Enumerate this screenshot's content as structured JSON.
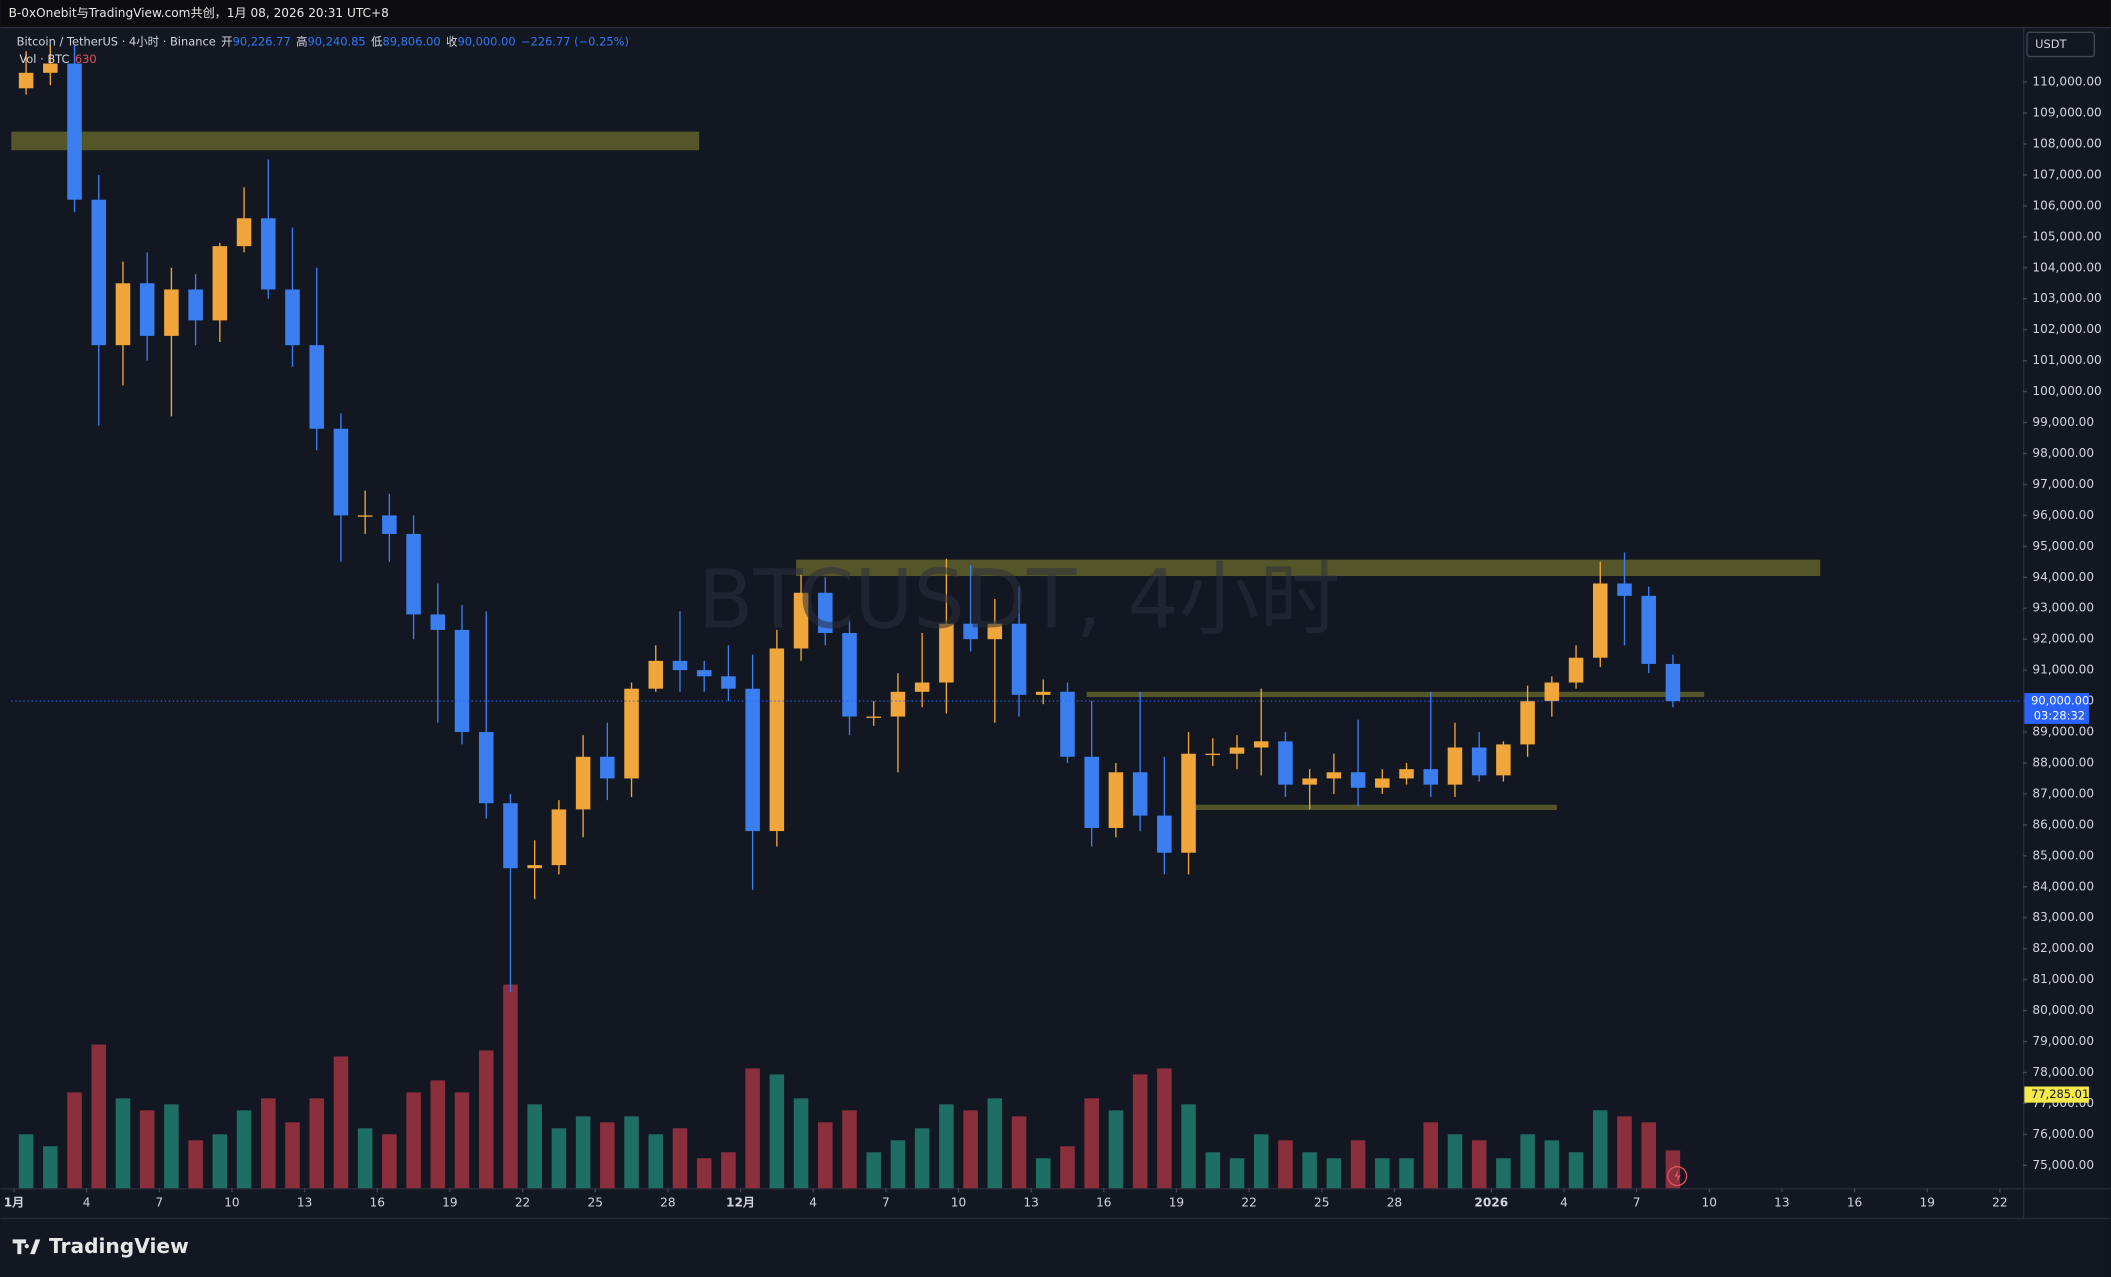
{
  "header": "B-0xOnebit与TradingView.com共创，1月 08, 2026 20:31 UTC+8",
  "brand": "TradingView",
  "chart_data": {
    "type": "candlestick",
    "legend": {
      "symbol": "Bitcoin / TetherUS · 4小时 · Binance",
      "open_label": "开",
      "open": "90,226.77",
      "high_label": "高",
      "high": "90,240.85",
      "low_label": "低",
      "low": "89,806.00",
      "close_label": "收",
      "close": "90,000.00",
      "change": "−226.77 (−0.25%)",
      "volume_label": "Vol · BTC"
    },
    "watermark": "BTCUSDT, 4小时",
    "currency": "USDT",
    "x": [
      "2025-11-01",
      "2025-11-02",
      "2025-11-03",
      "2025-11-04",
      "2025-11-05",
      "2025-11-06",
      "2025-11-07",
      "2025-11-08",
      "2025-11-09",
      "2025-11-10",
      "2025-11-11",
      "2025-11-12",
      "2025-11-13",
      "2025-11-14",
      "2025-11-15",
      "2025-11-16",
      "2025-11-17",
      "2025-11-18",
      "2025-11-19",
      "2025-11-20",
      "2025-11-21",
      "2025-11-22",
      "2025-11-23",
      "2025-11-24",
      "2025-11-25",
      "2025-11-26",
      "2025-11-27",
      "2025-11-28",
      "2025-11-29",
      "2025-11-30",
      "2025-12-01",
      "2025-12-02",
      "2025-12-03",
      "2025-12-04",
      "2025-12-05",
      "2025-12-06",
      "2025-12-07",
      "2025-12-08",
      "2025-12-09",
      "2025-12-10",
      "2025-12-11",
      "2025-12-12",
      "2025-12-13",
      "2025-12-14",
      "2025-12-15",
      "2025-12-16",
      "2025-12-17",
      "2025-12-18",
      "2025-12-19",
      "2025-12-20",
      "2025-12-21",
      "2025-12-22",
      "2025-12-23",
      "2025-12-24",
      "2025-12-25",
      "2025-12-26",
      "2025-12-27",
      "2025-12-28",
      "2025-12-29",
      "2025-12-30",
      "2025-12-31",
      "2026-01-01",
      "2026-01-02",
      "2026-01-03",
      "2026-01-04",
      "2026-01-05",
      "2026-01-06",
      "2026-01-07",
      "2026-01-08"
    ],
    "open": [
      109800,
      110300,
      110600,
      106200,
      101500,
      103500,
      101800,
      103300,
      102300,
      104700,
      105600,
      103300,
      101500,
      98800,
      96000,
      96000,
      95400,
      92800,
      92300,
      89000,
      86700,
      84600,
      84700,
      86500,
      88200,
      87500,
      90400,
      91300,
      91000,
      90800,
      90400,
      85800,
      91700,
      93500,
      92200,
      89500,
      89500,
      90300,
      90600,
      92500,
      92000,
      92500,
      90200,
      90300,
      88200,
      85900,
      87700,
      86300,
      85100,
      88300,
      88300,
      88500,
      88700,
      87300,
      87500,
      87700,
      87200,
      87500,
      87800,
      87300,
      88500,
      87600,
      88600,
      90000,
      90600,
      91400,
      93800,
      93400,
      91200
    ],
    "high": [
      111000,
      111200,
      111200,
      107000,
      104200,
      104500,
      104000,
      103800,
      104800,
      106600,
      107500,
      105300,
      104000,
      99300,
      96800,
      96700,
      96000,
      93800,
      93100,
      92900,
      87000,
      85500,
      86800,
      88900,
      89300,
      90600,
      91800,
      92900,
      91300,
      91800,
      91500,
      92300,
      94100,
      94000,
      92600,
      90000,
      90900,
      92200,
      94600,
      94400,
      93300,
      93700,
      90700,
      90600,
      90000,
      88000,
      90300,
      88200,
      89000,
      88800,
      88900,
      90400,
      89000,
      87800,
      88300,
      89400,
      87800,
      88000,
      90300,
      89300,
      89000,
      88700,
      90500,
      90800,
      91800,
      94500,
      94800,
      93700,
      91500
    ],
    "low": [
      109600,
      109900,
      105800,
      98900,
      100200,
      101000,
      99200,
      101500,
      101600,
      104500,
      103000,
      100800,
      98100,
      94500,
      95400,
      94500,
      92000,
      89300,
      88600,
      86200,
      80600,
      83600,
      84400,
      85600,
      86800,
      86900,
      90300,
      90300,
      90300,
      90000,
      83900,
      85300,
      91300,
      91800,
      88900,
      89200,
      87700,
      89800,
      89600,
      91600,
      89300,
      89500,
      89900,
      88000,
      85300,
      85600,
      85800,
      84400,
      84400,
      87900,
      87800,
      87600,
      86900,
      86500,
      87000,
      86600,
      87000,
      87300,
      86900,
      86900,
      87400,
      87400,
      88200,
      89500,
      90400,
      91100,
      91800,
      90900,
      89800
    ],
    "close": [
      110300,
      110600,
      106200,
      101500,
      103500,
      101800,
      103300,
      102300,
      104700,
      105600,
      103300,
      101500,
      98800,
      96000,
      96000,
      95400,
      92800,
      92300,
      89000,
      86700,
      84600,
      84700,
      86500,
      88200,
      87500,
      90400,
      91300,
      91000,
      90800,
      90400,
      85800,
      91700,
      93500,
      92200,
      89500,
      89500,
      90300,
      90600,
      92500,
      92000,
      92500,
      90200,
      90300,
      88200,
      85900,
      87700,
      86300,
      85100,
      88300,
      88300,
      88500,
      88700,
      87300,
      87500,
      87700,
      87200,
      87500,
      87800,
      87300,
      88500,
      87600,
      88600,
      90000,
      90600,
      91400,
      93800,
      93400,
      91200,
      90000
    ],
    "volume": [
      900,
      700,
      1600,
      2400,
      1500,
      1300,
      1400,
      800,
      900,
      1300,
      1500,
      1100,
      1500,
      2200,
      1000,
      900,
      1600,
      1800,
      1600,
      2300,
      3400,
      1400,
      1000,
      1200,
      1100,
      1200,
      900,
      1000,
      500,
      600,
      2000,
      1900,
      1500,
      1100,
      1300,
      600,
      800,
      1000,
      1400,
      1300,
      1500,
      1200,
      500,
      700,
      1500,
      1300,
      1900,
      2000,
      1400,
      600,
      500,
      900,
      800,
      600,
      500,
      800,
      500,
      500,
      1100,
      900,
      800,
      500,
      900,
      800,
      600,
      1300,
      1200,
      1100,
      630
    ],
    "up_color": "#f0a63a",
    "down_color": "#3b7ef0",
    "volume_up_color": "#1e6e64",
    "volume_down_color": "#8c2f3d",
    "xlim": [
      "2025-10-31T21:20Z",
      "2026-01-22T21:36Z"
    ],
    "xticks": [
      {
        "value": "2025-11-01",
        "label": "1月"
      },
      {
        "value": "2025-11-04",
        "label": "4"
      },
      {
        "value": "2025-11-07",
        "label": "7"
      },
      {
        "value": "2025-11-10",
        "label": "10"
      },
      {
        "value": "2025-11-13",
        "label": "13"
      },
      {
        "value": "2025-11-16",
        "label": "16"
      },
      {
        "value": "2025-11-19",
        "label": "19"
      },
      {
        "value": "2025-11-22",
        "label": "22"
      },
      {
        "value": "2025-11-25",
        "label": "25"
      },
      {
        "value": "2025-11-28",
        "label": "28"
      },
      {
        "value": "2025-12-01",
        "label": "12月"
      },
      {
        "value": "2025-12-04",
        "label": "4"
      },
      {
        "value": "2025-12-07",
        "label": "7"
      },
      {
        "value": "2025-12-10",
        "label": "10"
      },
      {
        "value": "2025-12-13",
        "label": "13"
      },
      {
        "value": "2025-12-16",
        "label": "16"
      },
      {
        "value": "2025-12-19",
        "label": "19"
      },
      {
        "value": "2025-12-22",
        "label": "22"
      },
      {
        "value": "2025-12-25",
        "label": "25"
      },
      {
        "value": "2025-12-28",
        "label": "28"
      },
      {
        "value": "2026-01-01",
        "label": "2026"
      },
      {
        "value": "2026-01-04",
        "label": "4"
      },
      {
        "value": "2026-01-07",
        "label": "7"
      },
      {
        "value": "2026-01-10",
        "label": "10"
      },
      {
        "value": "2026-01-13",
        "label": "13"
      },
      {
        "value": "2026-01-16",
        "label": "16"
      },
      {
        "value": "2026-01-19",
        "label": "19"
      },
      {
        "value": "2026-01-22",
        "label": "22"
      }
    ],
    "ylim": [
      74261,
      111783
    ],
    "yticks": [
      {
        "value": 75000,
        "label": "75,000.00"
      },
      {
        "value": 76000,
        "label": "76,000.00"
      },
      {
        "value": 77000,
        "label": "77,000.00"
      },
      {
        "value": 78000,
        "label": "78,000.00"
      },
      {
        "value": 79000,
        "label": "79,000.00"
      },
      {
        "value": 80000,
        "label": "80,000.00"
      },
      {
        "value": 81000,
        "label": "81,000.00"
      },
      {
        "value": 82000,
        "label": "82,000.00"
      },
      {
        "value": 83000,
        "label": "83,000.00"
      },
      {
        "value": 84000,
        "label": "84,000.00"
      },
      {
        "value": 85000,
        "label": "85,000.00"
      },
      {
        "value": 86000,
        "label": "86,000.00"
      },
      {
        "value": 87000,
        "label": "87,000.00"
      },
      {
        "value": 88000,
        "label": "88,000.00"
      },
      {
        "value": 89000,
        "label": "89,000.00"
      },
      {
        "value": 90000,
        "label": "90,000.00"
      },
      {
        "value": 91000,
        "label": "91,000.00"
      },
      {
        "value": 92000,
        "label": "92,000.00"
      },
      {
        "value": 93000,
        "label": "93,000.00"
      },
      {
        "value": 94000,
        "label": "94,000.00"
      },
      {
        "value": 95000,
        "label": "95,000.00"
      },
      {
        "value": 96000,
        "label": "96,000.00"
      },
      {
        "value": 97000,
        "label": "97,000.00"
      },
      {
        "value": 98000,
        "label": "98,000.00"
      },
      {
        "value": 99000,
        "label": "99,000.00"
      },
      {
        "value": 100000,
        "label": "100,000.00"
      },
      {
        "value": 101000,
        "label": "101,000.00"
      },
      {
        "value": 102000,
        "label": "102,000.00"
      },
      {
        "value": 103000,
        "label": "103,000.00"
      },
      {
        "value": 104000,
        "label": "104,000.00"
      },
      {
        "value": 105000,
        "label": "105,000.00"
      },
      {
        "value": 106000,
        "label": "106,000.00"
      },
      {
        "value": 107000,
        "label": "107,000.00"
      },
      {
        "value": 108000,
        "label": "108,000.00"
      },
      {
        "value": 109000,
        "label": "109,000.00"
      },
      {
        "value": 110000,
        "label": "110,000.00"
      }
    ],
    "volume_ylim": [
      0,
      4000
    ],
    "last_price": {
      "value": 90000,
      "label": "90,000.00",
      "countdown": "03:28:32"
    },
    "marker": {
      "value": 77285.01,
      "label": "77,285.01"
    },
    "zone_color": "rgba(128,126,46,0.6)",
    "zones": [
      {
        "start": "2025-10-31T21:20Z",
        "end": "2025-11-29T07:00Z",
        "low": 107800,
        "high": 108400
      },
      {
        "start": "2025-12-03T07:00Z",
        "end": "2026-01-14T14:00Z",
        "low": 94040,
        "high": 94570
      },
      {
        "start": "2025-12-15T07:00Z",
        "end": "2026-01-09T19:00Z",
        "low": 90130,
        "high": 90300
      },
      {
        "start": "2025-12-19T07:00Z",
        "end": "2026-01-03T17:00Z",
        "low": 86480,
        "high": 86650
      }
    ],
    "grid": false
  }
}
